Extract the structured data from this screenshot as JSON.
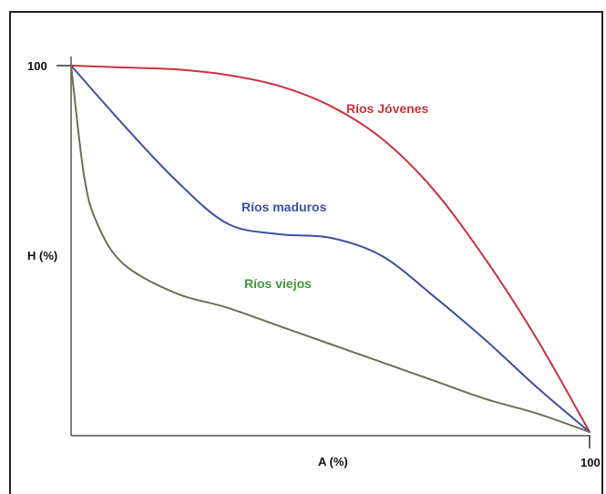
{
  "chart_data": {
    "type": "line",
    "title": "",
    "xlabel": "A (%)",
    "ylabel": "H (%)",
    "xlim": [
      0,
      100
    ],
    "ylim": [
      0,
      100
    ],
    "x_ticks": [
      "100"
    ],
    "y_ticks": [
      "100"
    ],
    "grid": false,
    "legend": "inline labels",
    "series": [
      {
        "name": "Ríos Jóvenes",
        "color": "#c8323c",
        "x": [
          0,
          10,
          20,
          30,
          40,
          50,
          60,
          70,
          80,
          90,
          100
        ],
        "y": [
          100,
          99.5,
          99,
          97.5,
          94.5,
          89,
          80,
          66,
          47,
          25,
          0
        ]
      },
      {
        "name": "Ríos maduros",
        "color": "#3c50a0",
        "x": [
          0,
          10,
          20,
          30,
          40,
          50,
          60,
          70,
          80,
          90,
          100
        ],
        "y": [
          100,
          84,
          69,
          57,
          54,
          53,
          48,
          37,
          25,
          12,
          0
        ]
      },
      {
        "name": "Ríos viejos",
        "color": "#6e6e5a",
        "x": [
          0,
          2.5,
          5,
          10,
          20,
          30,
          40,
          50,
          60,
          70,
          80,
          90,
          100
        ],
        "y": [
          100,
          70,
          57,
          46,
          38,
          34,
          29,
          24,
          19,
          14,
          9,
          5,
          0
        ]
      }
    ],
    "annotations": [
      {
        "text": "Ríos Jóvenes",
        "color": "#c8323c"
      },
      {
        "text": "Ríos maduros",
        "color": "#3c50a0"
      },
      {
        "text": "Ríos viejos",
        "color": "#3a9a3a"
      }
    ]
  }
}
